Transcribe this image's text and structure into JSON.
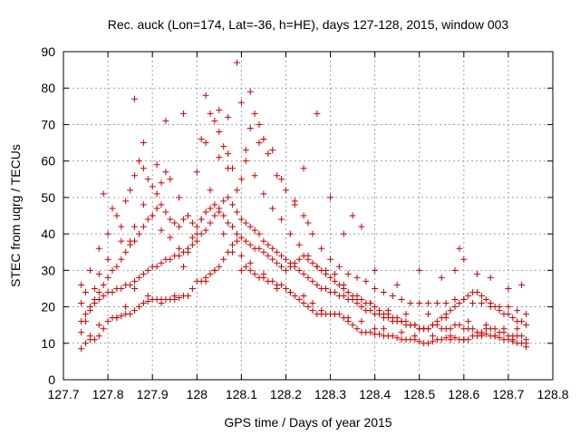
{
  "chart_data": {
    "type": "scatter",
    "title": "Rec. auck (Lon=174, Lat=-36, h=HE), days 127-128, 2015, window 003",
    "xlabel": "GPS time / Days of year 2015",
    "ylabel": "STEC from uqrg / TECUs",
    "xlim": [
      127.7,
      128.8
    ],
    "ylim": [
      0,
      90
    ],
    "xticks": [
      "127.7",
      "127.8",
      "127.9",
      "128",
      "128.1",
      "128.2",
      "128.3",
      "128.4",
      "128.5",
      "128.6",
      "128.7",
      "128.8"
    ],
    "yticks": [
      "0",
      "10",
      "20",
      "30",
      "40",
      "50",
      "60",
      "70",
      "80",
      "90"
    ],
    "grid": true,
    "marker": "plus",
    "color": "#cc0000",
    "series": [
      {
        "x": [
          127.74,
          127.75,
          127.76,
          127.77,
          127.78,
          127.79,
          127.8,
          127.81,
          127.82,
          127.83,
          127.84,
          127.85,
          127.86,
          127.87,
          127.88,
          127.89,
          127.9,
          127.91,
          127.92,
          127.93,
          127.94,
          127.95,
          127.96,
          127.97,
          127.98,
          127.99,
          128.0,
          128.01,
          128.02,
          128.03,
          128.04,
          128.05,
          128.06,
          128.07,
          128.08,
          128.09,
          128.1,
          128.11,
          128.12,
          128.13,
          128.14,
          128.15,
          128.16,
          128.17,
          128.18,
          128.19,
          128.2,
          128.21,
          128.22,
          128.23,
          128.24,
          128.25,
          128.26,
          128.27,
          128.28,
          128.29,
          128.3,
          128.31,
          128.32,
          128.33,
          128.34,
          128.35,
          128.36,
          128.37,
          128.38,
          128.39,
          128.4,
          128.41,
          128.42,
          128.43,
          128.44,
          128.45,
          128.46,
          128.47,
          128.48,
          128.49,
          128.5,
          128.51,
          128.52,
          128.53,
          128.54,
          128.55,
          128.56,
          128.57,
          128.58,
          128.59,
          128.6,
          128.61,
          128.62,
          128.63,
          128.64,
          128.65,
          128.66,
          128.67,
          128.68,
          128.69,
          128.7,
          128.71,
          128.72,
          128.73,
          128.74
        ],
        "y": [
          8.5,
          10,
          11,
          11,
          12,
          14,
          16,
          17,
          17,
          17.5,
          18,
          18,
          19,
          20,
          21,
          21.5,
          22,
          22,
          22,
          22,
          22,
          22,
          22.5,
          23,
          23,
          25,
          27,
          27,
          28,
          29,
          30,
          31,
          33,
          35,
          37,
          38,
          34,
          31,
          30,
          29,
          28,
          28,
          27,
          27,
          26,
          26,
          25,
          24,
          23,
          22,
          21,
          20,
          19,
          18,
          18,
          18,
          18,
          18,
          18,
          17,
          16,
          15,
          14,
          13,
          13,
          13,
          12.5,
          12.5,
          12,
          12,
          12,
          11.5,
          11,
          11,
          11,
          11,
          10.5,
          10,
          10,
          10.5,
          11,
          11,
          11.5,
          12,
          11.5,
          11,
          11,
          11,
          12,
          12,
          12.5,
          12.5,
          12,
          12,
          11.5,
          11,
          11,
          10.5,
          10,
          10,
          9
        ]
      },
      {
        "x": [
          127.74,
          127.75,
          127.76,
          127.77,
          127.78,
          127.79,
          127.8,
          127.81,
          127.82,
          127.83,
          127.84,
          127.85,
          127.86,
          127.87,
          127.88,
          127.89,
          127.9,
          127.91,
          127.92,
          127.93,
          127.94,
          127.95,
          127.96,
          127.97,
          127.98,
          127.99,
          128.0,
          128.01,
          128.02,
          128.03,
          128.04,
          128.05,
          128.06,
          128.07,
          128.08,
          128.09,
          128.1,
          128.11,
          128.12,
          128.13,
          128.14,
          128.15,
          128.16,
          128.17,
          128.18,
          128.19,
          128.2,
          128.21,
          128.22,
          128.23,
          128.24,
          128.25,
          128.26,
          128.27,
          128.28,
          128.29,
          128.3,
          128.31,
          128.32,
          128.33,
          128.34,
          128.35,
          128.36,
          128.37,
          128.38,
          128.39,
          128.4,
          128.41,
          128.42,
          128.43,
          128.44,
          128.45,
          128.46,
          128.47,
          128.48,
          128.49,
          128.5,
          128.51,
          128.52,
          128.53,
          128.54,
          128.55,
          128.56,
          128.57,
          128.58,
          128.59,
          128.6,
          128.61,
          128.62,
          128.63,
          128.64,
          128.65,
          128.66,
          128.67,
          128.68,
          128.69,
          128.7,
          128.71,
          128.72,
          128.73,
          128.74
        ],
        "y": [
          16,
          18,
          20,
          22,
          24,
          26,
          28,
          30,
          31,
          33,
          35,
          37,
          38,
          40,
          42,
          44,
          45,
          47,
          48,
          46,
          44,
          43,
          42,
          44,
          45,
          43,
          42,
          44,
          46,
          47,
          48,
          46,
          45,
          43,
          42,
          40,
          39,
          38,
          37,
          36,
          36,
          35,
          34,
          33,
          32,
          31,
          30,
          31,
          32,
          33,
          34,
          33,
          32,
          31,
          30,
          29,
          28,
          27,
          26,
          25,
          24,
          23,
          22,
          22,
          21,
          21,
          20,
          19,
          18,
          18,
          17,
          17,
          16,
          16,
          15,
          15,
          14,
          14,
          14,
          15,
          15,
          14,
          14,
          14,
          15,
          15,
          14,
          14,
          14,
          13,
          13,
          14,
          14,
          14,
          13,
          13,
          12,
          12,
          12,
          12,
          11
        ]
      },
      {
        "x": [
          127.74,
          127.76,
          127.78,
          127.8,
          127.82,
          127.84,
          127.85,
          127.86,
          127.87,
          127.88,
          127.89,
          127.9,
          127.91,
          127.92,
          127.93,
          127.94,
          127.96,
          127.98,
          128.0,
          128.01,
          128.02,
          128.03,
          128.04,
          128.05,
          128.06,
          128.07,
          128.08,
          128.1,
          128.11,
          128.12,
          128.13,
          128.14,
          128.15,
          128.16,
          128.18,
          128.2,
          128.22,
          128.24,
          128.25,
          128.26,
          128.28,
          128.3,
          128.32,
          128.34,
          128.36,
          128.38,
          128.4,
          128.42,
          128.44,
          128.46,
          128.48,
          128.5,
          128.52,
          128.54,
          128.56,
          128.58,
          128.6,
          128.62,
          128.64,
          128.66,
          128.68,
          128.7,
          128.72,
          128.74
        ],
        "y": [
          26,
          30,
          36,
          40,
          45,
          49,
          52,
          56,
          60,
          58,
          55,
          53,
          51,
          54,
          57,
          55,
          50,
          45,
          40,
          66,
          78,
          73,
          71,
          68,
          64,
          62,
          58,
          55,
          60,
          69,
          73,
          70,
          66,
          62,
          56,
          52,
          48,
          45,
          43,
          40,
          36,
          33,
          31,
          29,
          28,
          27,
          25,
          24,
          23,
          22,
          21,
          21,
          21,
          21,
          21,
          22,
          22,
          21,
          21,
          20,
          20,
          20,
          19,
          18
        ]
      },
      {
        "x": [
          127.74,
          127.75,
          127.76,
          127.77,
          127.78,
          127.79,
          127.8,
          127.81,
          127.82,
          127.83,
          127.84,
          127.85,
          127.86,
          127.87,
          127.88,
          127.89,
          127.9,
          127.91,
          127.92,
          127.93,
          127.94,
          127.95,
          127.96,
          127.97,
          127.98,
          127.99,
          128.0,
          128.01,
          128.02,
          128.03,
          128.04,
          128.05,
          128.06,
          128.07,
          128.08,
          128.09,
          128.1,
          128.11,
          128.12,
          128.13,
          128.14,
          128.15,
          128.16,
          128.17,
          128.18,
          128.19,
          128.2,
          128.21,
          128.22,
          128.23,
          128.24,
          128.25,
          128.26,
          128.27,
          128.28,
          128.29,
          128.3,
          128.31,
          128.32,
          128.33,
          128.34,
          128.35,
          128.36,
          128.37,
          128.38,
          128.39,
          128.4,
          128.41,
          128.42,
          128.43,
          128.44,
          128.45,
          128.46,
          128.47,
          128.48,
          128.49,
          128.5,
          128.51,
          128.52,
          128.53,
          128.54,
          128.55,
          128.56,
          128.57,
          128.58,
          128.59,
          128.6,
          128.61,
          128.62,
          128.63,
          128.64,
          128.65,
          128.66,
          128.67,
          128.68,
          128.69,
          128.7,
          128.71,
          128.72,
          128.73,
          128.74
        ],
        "y": [
          13,
          16,
          19,
          21,
          22,
          23,
          24,
          24,
          25,
          25,
          26,
          26,
          27,
          28,
          29,
          30,
          31,
          31,
          32,
          33,
          33,
          34,
          34,
          35,
          36,
          37,
          38,
          40,
          41,
          43,
          45,
          47,
          49,
          50,
          48,
          46,
          44,
          43,
          42,
          41,
          40,
          38,
          37,
          36,
          35,
          34,
          33,
          32,
          31,
          30,
          29,
          28,
          27,
          26,
          25,
          25,
          24,
          24,
          23,
          23,
          22,
          22,
          21,
          20,
          19,
          19,
          18,
          18,
          17,
          17,
          16,
          16,
          16,
          15,
          15,
          15,
          14,
          14,
          14,
          15,
          16,
          17,
          18,
          19,
          20,
          21,
          22,
          23,
          24,
          24,
          23,
          22,
          21,
          20,
          19,
          18,
          18,
          17,
          16,
          16,
          15
        ]
      },
      {
        "x": [
          127.75,
          127.78,
          127.8,
          127.83,
          127.86,
          127.88,
          127.91,
          127.93,
          127.97,
          128.0,
          128.02,
          128.05,
          128.07,
          128.09,
          128.1,
          128.12,
          128.14,
          128.17,
          128.19,
          128.22,
          128.24,
          128.27,
          128.3,
          128.33,
          128.35,
          128.37,
          128.4,
          128.45,
          128.5,
          128.55,
          128.58,
          128.59,
          128.6,
          128.63,
          128.66,
          128.7,
          128.73
        ],
        "y": [
          24,
          29,
          33,
          38,
          42,
          48,
          59,
          71,
          73,
          57,
          65,
          74,
          72,
          87,
          76,
          79,
          65,
          63,
          55,
          49,
          58,
          73,
          50,
          40,
          45,
          42,
          30,
          26,
          30,
          28,
          30,
          36,
          33,
          29,
          28,
          25,
          26
        ]
      },
      {
        "x": [
          127.74,
          127.77,
          127.79,
          127.81,
          127.83,
          127.85,
          127.86,
          127.88,
          127.9,
          127.92,
          127.94,
          127.96,
          127.98,
          128.01,
          128.03,
          128.05,
          128.07,
          128.09,
          128.11,
          128.13,
          128.15,
          128.17,
          128.19,
          128.21,
          128.23,
          128.25,
          128.27,
          128.29,
          128.31,
          128.33,
          128.36,
          128.39,
          128.43,
          128.47,
          128.52,
          128.56,
          128.61,
          128.65,
          128.69,
          128.72
        ],
        "y": [
          21,
          25,
          51,
          47,
          42,
          38,
          77,
          65,
          45,
          41,
          39,
          36,
          35,
          44,
          52,
          61,
          58,
          52,
          63,
          56,
          51,
          47,
          44,
          40,
          37,
          34,
          31,
          30,
          29,
          26,
          23,
          21,
          19,
          18,
          18,
          17,
          16,
          15,
          14,
          14
        ]
      },
      {
        "x": [
          127.76,
          127.78,
          127.82,
          127.84,
          127.86,
          127.89,
          127.92,
          127.95,
          127.97,
          127.99,
          128.02,
          128.04,
          128.06,
          128.08,
          128.1,
          128.12,
          128.15,
          128.18,
          128.21,
          128.24,
          128.26,
          128.28,
          128.31,
          128.34,
          128.37,
          128.4,
          128.42,
          128.46,
          128.49,
          128.53,
          128.57,
          128.6,
          128.64,
          128.67,
          128.71,
          128.74
        ],
        "y": [
          12,
          15,
          17,
          20,
          25,
          23,
          21,
          23,
          31,
          39,
          27,
          30,
          40,
          35,
          30,
          32,
          29,
          25,
          24,
          23,
          21,
          19,
          18,
          17,
          16,
          14,
          14,
          13,
          12,
          12,
          11,
          11,
          12,
          12,
          11,
          10
        ]
      }
    ]
  }
}
